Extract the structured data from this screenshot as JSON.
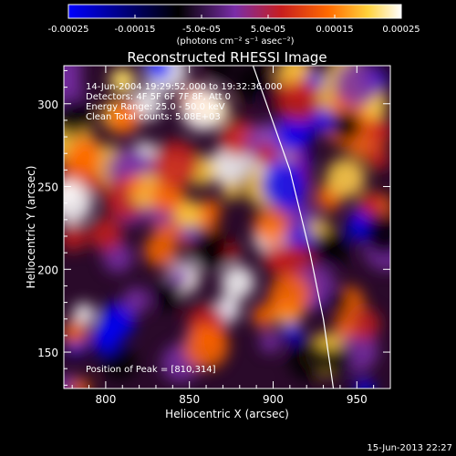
{
  "chart_data": {
    "type": "heatmap",
    "title": "Reconstructed RHESSI Image",
    "xlabel": "Heliocentric X (arcsec)",
    "ylabel": "Heliocentric Y (arcsec)",
    "xlim": [
      775,
      970
    ],
    "ylim": [
      128,
      323
    ],
    "x_ticks": [
      800,
      850,
      900,
      950
    ],
    "y_ticks": [
      150,
      200,
      250,
      300
    ],
    "colorbar": {
      "label": "(photons cm⁻² s⁻¹ asec⁻²)",
      "range": [
        -0.00025,
        0.00025
      ],
      "tick_labels": [
        "-0.00025",
        "-0.00015",
        "-5.0e-05",
        "5.0e-05",
        "0.00015",
        "0.00025"
      ],
      "tick_values": [
        -0.00025,
        -0.00015,
        -5e-05,
        5e-05,
        0.00015,
        0.00025
      ],
      "colormap": [
        "#0000ff",
        "#000000",
        "#7a2da8",
        "#c81e1e",
        "#ff6a00",
        "#ffd23c",
        "#ffffff"
      ]
    },
    "annotations": [
      "14-Jun-2004 19:29:52.000 to 19:32:36.000",
      "Detectors: 4F 5F 6F 7F 8F, Att 0",
      "Energy Range: 25.0 - 50.0 keV",
      "Clean     Total counts: 5.08E+03"
    ],
    "peak_label": "Position of Peak = [810,314]",
    "peak": [
      810,
      314
    ],
    "limb_curve": [
      [
        888,
        323
      ],
      [
        910,
        260
      ],
      [
        922,
        210
      ],
      [
        930,
        170
      ],
      [
        936,
        128
      ]
    ],
    "timestamp": "15-Jun-2013 22:27"
  }
}
